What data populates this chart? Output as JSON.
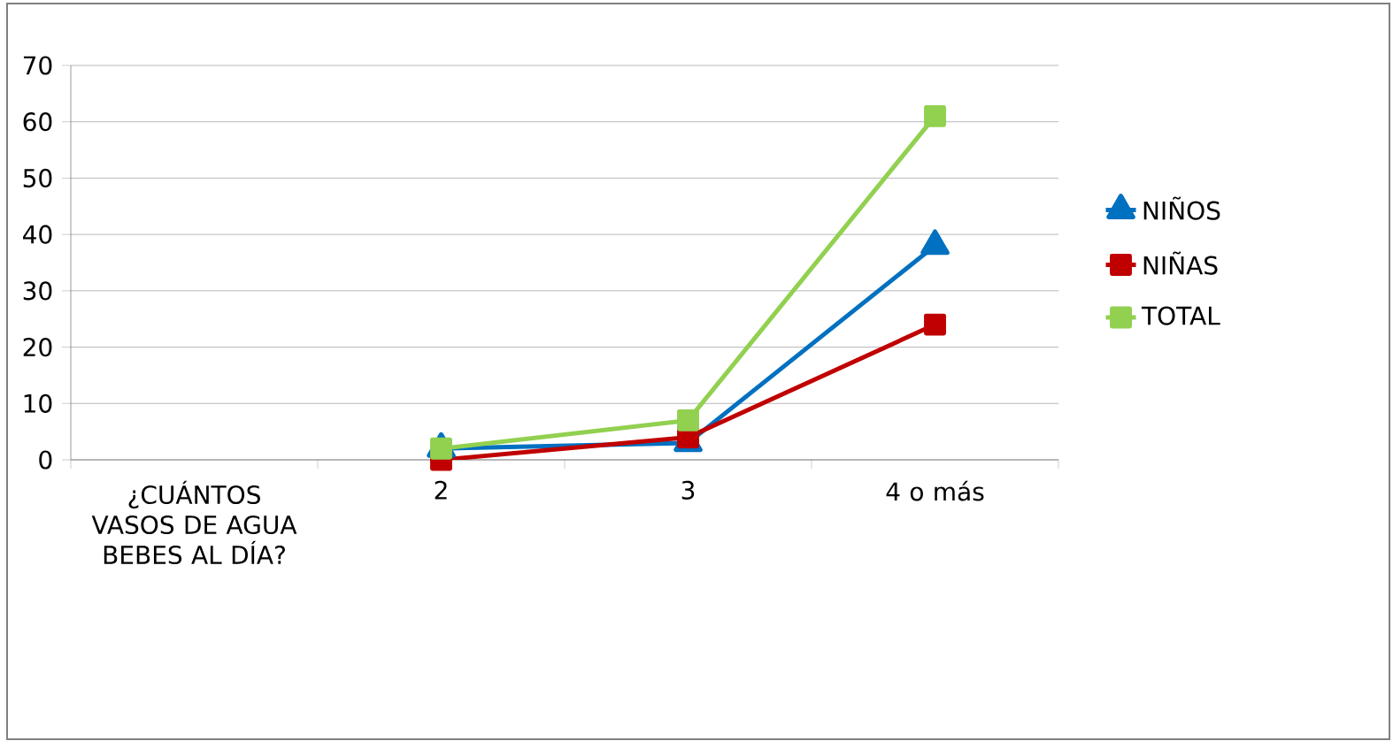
{
  "chart_data": {
    "type": "line",
    "categories": [
      "¿CUÁNTOS VASOS DE AGUA BEBES AL DÍA?",
      "2",
      "3",
      "4 o más"
    ],
    "series": [
      {
        "name": "NIÑOS",
        "color": "#0070c0",
        "marker": "triangle",
        "values": [
          null,
          2,
          3,
          38
        ]
      },
      {
        "name": "NIÑAS",
        "color": "#c00000",
        "marker": "square",
        "values": [
          null,
          0,
          4,
          24
        ]
      },
      {
        "name": "TOTAL",
        "color": "#92d050",
        "marker": "square",
        "values": [
          null,
          2,
          7,
          61
        ]
      }
    ],
    "ylim": [
      0,
      70
    ],
    "yticks": [
      0,
      10,
      20,
      30,
      40,
      50,
      60,
      70
    ],
    "grid": "y",
    "legend": "right"
  }
}
